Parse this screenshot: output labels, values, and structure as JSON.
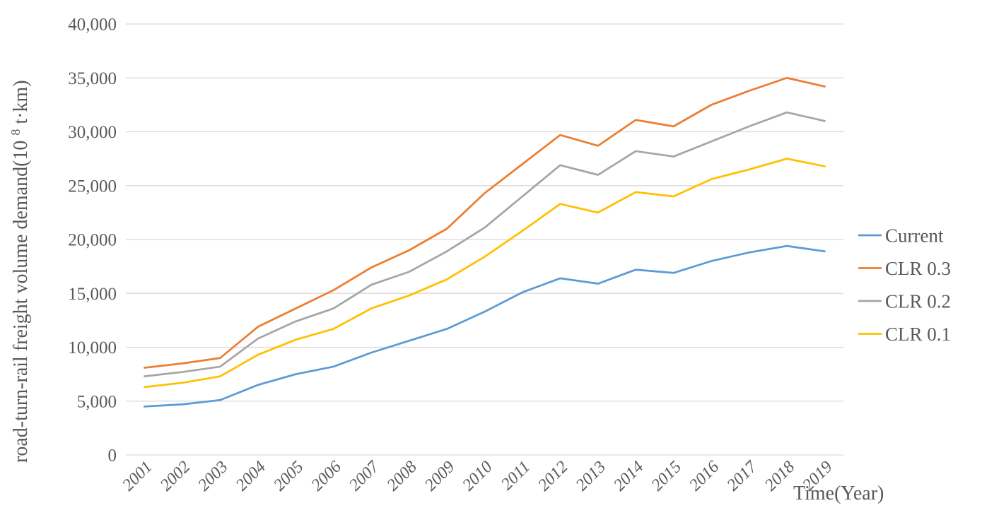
{
  "chart_data": {
    "type": "line",
    "title": "",
    "xlabel": "Time(Year)",
    "ylabel": "road-turn-rail freight volume demand(10⁸t·km)",
    "ylabel_main": "road-turn-rail freight volume demand(10",
    "ylabel_sup": "8",
    "ylabel_rest": "t·km)",
    "categories": [
      "2001",
      "2002",
      "2003",
      "2004",
      "2005",
      "2006",
      "2007",
      "2008",
      "2009",
      "2010",
      "2011",
      "2012",
      "2013",
      "2014",
      "2015",
      "2016",
      "2017",
      "2018",
      "2019"
    ],
    "series": [
      {
        "name": "Current",
        "color": "#5B9BD5",
        "values": [
          4500,
          4700,
          5100,
          6500,
          7500,
          8200,
          9500,
          10600,
          11700,
          13300,
          15100,
          16400,
          15900,
          17200,
          16900,
          18000,
          18800,
          19400,
          18900
        ]
      },
      {
        "name": "CLR 0.3",
        "color": "#ED7D31",
        "values": [
          8100,
          8500,
          9000,
          11900,
          13600,
          15300,
          17400,
          19000,
          21000,
          24300,
          27000,
          29700,
          28700,
          31100,
          30500,
          32500,
          33800,
          35000,
          34200
        ]
      },
      {
        "name": "CLR 0.2",
        "color": "#A5A5A5",
        "values": [
          7300,
          7700,
          8200,
          10800,
          12400,
          13600,
          15800,
          17000,
          18900,
          21100,
          24000,
          26900,
          26000,
          28200,
          27700,
          29100,
          30500,
          31800,
          31000
        ]
      },
      {
        "name": "CLR 0.1",
        "color": "#FFC000",
        "values": [
          6300,
          6700,
          7300,
          9300,
          10700,
          11700,
          13600,
          14800,
          16300,
          18400,
          20800,
          23300,
          22500,
          24400,
          24000,
          25600,
          26500,
          27500,
          26800
        ]
      }
    ],
    "y_axis": {
      "min": 0,
      "max": 40000,
      "step": 5000,
      "tick_format": "thousands-comma"
    },
    "x_axis": {
      "label_rotation_deg": -45
    },
    "grid": true,
    "legend_position": "right",
    "legend_labels": [
      "Current",
      "CLR 0.3",
      "CLR 0.2",
      "CLR 0.1"
    ],
    "gridline_color": "#D9D9D9",
    "text_color": "#595959"
  }
}
